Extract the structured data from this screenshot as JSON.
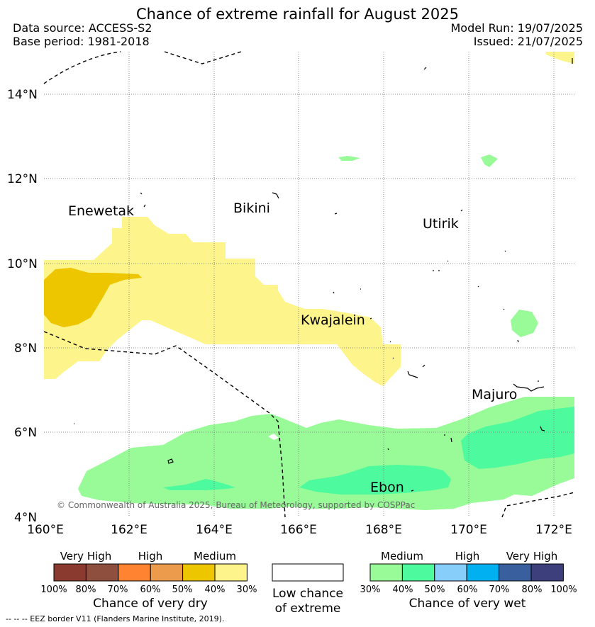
{
  "title": "Chance of extreme rainfall for August 2025",
  "header": {
    "data_source": "Data source: ACCESS-S2",
    "base_period": "Base period: 1981-2018",
    "model_run": "Model Run: 19/07/2025",
    "issued": "Issued: 21/07/2025"
  },
  "map": {
    "lat_labels": [
      "14°N",
      "12°N",
      "10°N",
      "8°N",
      "6°N",
      "4°N"
    ],
    "lon_labels": [
      "160°E",
      "162°E",
      "164°E",
      "166°E",
      "168°E",
      "170°E",
      "172°E"
    ],
    "places": {
      "enewetak": "Enewetak",
      "bikini": "Bikini",
      "utirik": "Utirik",
      "kwajalein": "Kwajalein",
      "majuro": "Majuro",
      "ebon": "Ebon"
    },
    "copyright": "© Commonwealth of Australia 2025, Bureau of Meteorology, supported by COSPPac"
  },
  "legend": {
    "dry": {
      "levels": [
        "Very High",
        "High",
        "Medium"
      ],
      "ticks": [
        "100%",
        "80%",
        "70%",
        "60%",
        "50%",
        "40%",
        "30%"
      ],
      "caption": "Chance of very dry",
      "colors": [
        "#8b3a30",
        "#8f4f3f",
        "#ff8330",
        "#ec9a4c",
        "#edc600",
        "#fdf58b"
      ]
    },
    "low": {
      "line1": "Low chance",
      "line2": "of extreme"
    },
    "wet": {
      "levels": [
        "Medium",
        "High",
        "Very High"
      ],
      "ticks": [
        "30%",
        "40%",
        "50%",
        "60%",
        "70%",
        "80%",
        "100%"
      ],
      "caption": "Chance of very wet",
      "colors": [
        "#98fb98",
        "#4dfa9d",
        "#87cefa",
        "#00b0f0",
        "#3a5f9f",
        "#3d3f7c"
      ]
    }
  },
  "footnote": "--  --  -- EEZ border V11 (Flanders Marine Institute, 2019)."
}
